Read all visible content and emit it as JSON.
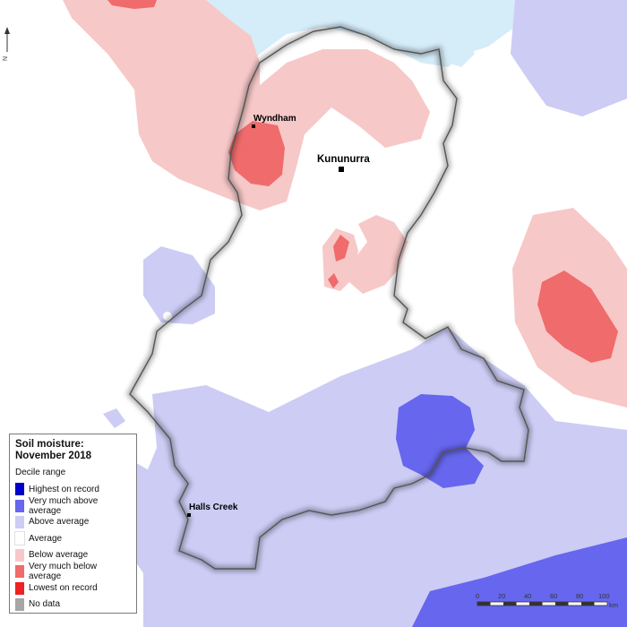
{
  "legend": {
    "title_line1": "Soil moisture:",
    "title_line2": "November 2018",
    "subtitle": "Decile range",
    "items": [
      {
        "label": "Highest on record",
        "color": "#0000cc"
      },
      {
        "label": "Very much above average",
        "color": "#6666ee"
      },
      {
        "label": "Above average",
        "color": "#ccccf5"
      },
      {
        "label": "Average",
        "color": "#ffffff"
      },
      {
        "label": "Below average",
        "color": "#f7c8c8"
      },
      {
        "label": "Very much below average",
        "color": "#f06b6b"
      },
      {
        "label": "Lowest on record",
        "color": "#ee2222"
      },
      {
        "label": "No data",
        "color": "#a6a6a6"
      }
    ]
  },
  "places": {
    "wyndham": "Wyndham",
    "kununurra": "Kununurra",
    "halls_creek": "Halls Creek"
  },
  "north_arrow": "N",
  "scale": {
    "ticks": [
      "0",
      "20",
      "40",
      "60",
      "80",
      "100"
    ],
    "unit": "km"
  },
  "colors": {
    "ocean": "#d5ecf9",
    "boundary": "#555555"
  }
}
